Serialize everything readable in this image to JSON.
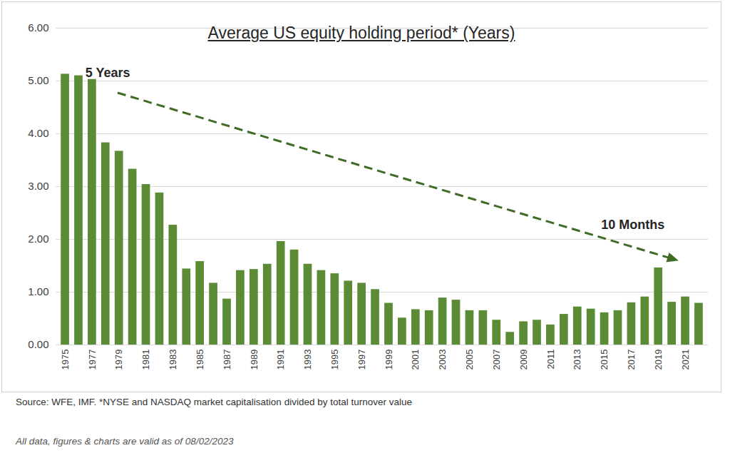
{
  "chart_data": {
    "type": "bar",
    "title": "Average US equity holding period* (Years)",
    "caption": "Source: WFE, IMF. *NYSE and NASDAQ market capitalisation divided by total turnover value",
    "footnote": "All data, figures & charts are valid as of 08/02/2023",
    "annotations": [
      "5 Years",
      "10 Months"
    ],
    "categories": [
      "1975",
      null,
      "1977",
      null,
      "1979",
      null,
      "1981",
      null,
      "1983",
      null,
      "1985",
      null,
      "1987",
      null,
      "1989",
      null,
      "1991",
      null,
      "1993",
      null,
      "1995",
      null,
      "1997",
      null,
      "1999",
      null,
      "2001",
      null,
      "2003",
      null,
      "2005",
      null,
      "2007",
      null,
      "2009",
      null,
      "2011",
      null,
      "2013",
      null,
      "2015",
      null,
      "2017",
      null,
      "2019",
      null,
      "2021",
      null
    ],
    "values": [
      5.13,
      5.1,
      5.03,
      3.83,
      3.67,
      3.33,
      3.04,
      2.88,
      2.27,
      1.44,
      1.58,
      1.17,
      0.87,
      1.41,
      1.43,
      1.53,
      1.96,
      1.8,
      1.53,
      1.41,
      1.35,
      1.21,
      1.17,
      1.05,
      0.79,
      0.51,
      0.67,
      0.65,
      0.89,
      0.85,
      0.65,
      0.65,
      0.47,
      0.24,
      0.44,
      0.47,
      0.38,
      0.58,
      0.72,
      0.68,
      0.61,
      0.65,
      0.8,
      0.91,
      1.46,
      0.81,
      0.91,
      0.79
    ],
    "color": "#5b8c35",
    "ylim": [
      0,
      6
    ],
    "yticks": [
      {
        "value": 0,
        "label": "0.00"
      },
      {
        "value": 1,
        "label": "1.00"
      },
      {
        "value": 2,
        "label": "2.00"
      },
      {
        "value": 3,
        "label": "3.00"
      },
      {
        "value": 4,
        "label": "4.00"
      },
      {
        "value": 5,
        "label": "5.00"
      },
      {
        "value": 6,
        "label": "6.00"
      }
    ],
    "grid": true
  }
}
